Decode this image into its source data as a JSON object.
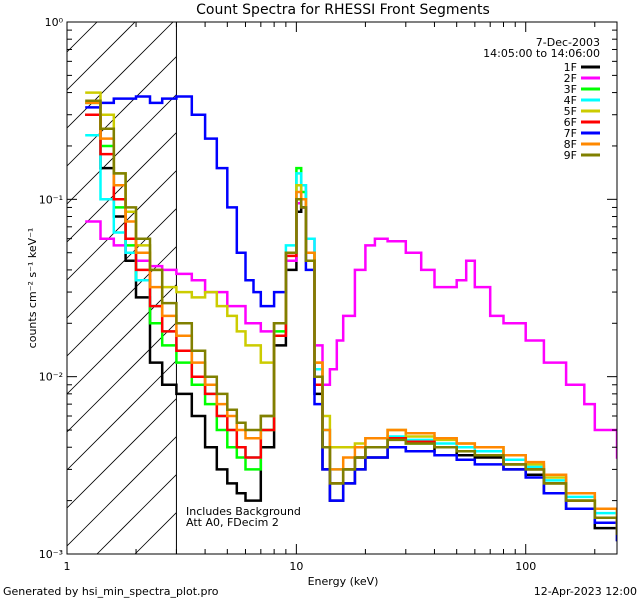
{
  "chart_data": {
    "type": "line",
    "title": "Count Spectra for RHESSI Front Segments",
    "xlabel": "Energy (keV)",
    "ylabel": "counts cm⁻² s⁻¹ keV⁻¹",
    "xscale": "log",
    "yscale": "log",
    "xlim": [
      1,
      250
    ],
    "ylim": [
      0.001,
      1
    ],
    "x_ticks": [
      {
        "value": 1,
        "label": "1"
      },
      {
        "value": 10,
        "label": "10"
      },
      {
        "value": 100,
        "label": "100"
      }
    ],
    "y_ticks": [
      {
        "value": 1,
        "label": "10⁰"
      },
      {
        "value": 0.1,
        "label": "10⁻¹"
      },
      {
        "value": 0.01,
        "label": "10⁻²"
      },
      {
        "value": 0.001,
        "label": "10⁻³"
      }
    ],
    "legend_position": "top-right",
    "header_lines": [
      "7-Dec-2003",
      "14:05:00 to 14:06:00"
    ],
    "annotation_lines": [
      "Includes Background",
      "Att A0, FDecim 2"
    ],
    "hatched_region_kev": [
      1,
      3
    ],
    "footer_left": "Generated by hsi_min_spectra_plot.pro",
    "footer_right": "12-Apr-2023 12:00",
    "series": [
      {
        "name": "1F",
        "color": "#000000",
        "x": [
          1.2,
          1.4,
          1.6,
          1.8,
          2.0,
          2.3,
          2.6,
          3.0,
          3.5,
          4,
          4.5,
          5,
          5.5,
          6,
          7,
          8,
          9,
          10,
          10.5,
          11,
          12,
          13,
          14,
          16,
          18,
          20,
          25,
          30,
          40,
          50,
          60,
          80,
          100,
          120,
          150,
          200,
          250
        ],
        "y": [
          0.3,
          0.15,
          0.08,
          0.045,
          0.028,
          0.012,
          0.009,
          0.008,
          0.006,
          0.004,
          0.003,
          0.0025,
          0.0022,
          0.002,
          0.004,
          0.015,
          0.04,
          0.085,
          0.09,
          0.05,
          0.008,
          0.003,
          0.002,
          0.0025,
          0.003,
          0.0035,
          0.004,
          0.0038,
          0.004,
          0.0036,
          0.0035,
          0.003,
          0.0028,
          0.0022,
          0.0018,
          0.0014,
          0.0012
        ]
      },
      {
        "name": "2F",
        "color": "#ff00ff",
        "x": [
          1.2,
          1.4,
          1.6,
          1.8,
          2.0,
          2.3,
          2.6,
          3.0,
          3.5,
          4,
          5,
          6,
          7,
          8,
          9,
          10,
          10.5,
          11,
          12,
          13,
          14,
          15,
          16,
          18,
          20,
          22,
          25,
          30,
          35,
          40,
          50,
          55,
          60,
          70,
          80,
          100,
          120,
          150,
          180,
          200,
          250
        ],
        "y": [
          0.075,
          0.06,
          0.055,
          0.05,
          0.045,
          0.042,
          0.04,
          0.038,
          0.035,
          0.03,
          0.025,
          0.02,
          0.018,
          0.02,
          0.045,
          0.095,
          0.12,
          0.06,
          0.015,
          0.009,
          0.011,
          0.016,
          0.022,
          0.04,
          0.055,
          0.06,
          0.058,
          0.05,
          0.04,
          0.032,
          0.035,
          0.045,
          0.032,
          0.022,
          0.02,
          0.016,
          0.012,
          0.009,
          0.007,
          0.005,
          0.0035
        ]
      },
      {
        "name": "3F",
        "color": "#00ff00",
        "x": [
          1.2,
          1.4,
          1.6,
          1.8,
          2.0,
          2.3,
          2.6,
          3.0,
          3.5,
          4,
          4.5,
          5,
          5.5,
          6,
          7,
          8,
          9,
          10,
          10.5,
          11,
          12,
          13,
          14,
          16,
          18,
          20,
          25,
          30,
          40,
          50,
          60,
          80,
          100,
          120,
          150,
          200,
          250
        ],
        "y": [
          0.35,
          0.2,
          0.09,
          0.055,
          0.035,
          0.02,
          0.015,
          0.012,
          0.009,
          0.007,
          0.005,
          0.004,
          0.0035,
          0.003,
          0.005,
          0.018,
          0.05,
          0.15,
          0.11,
          0.05,
          0.009,
          0.004,
          0.0025,
          0.003,
          0.0035,
          0.004,
          0.0045,
          0.0042,
          0.004,
          0.0038,
          0.0036,
          0.0032,
          0.003,
          0.0025,
          0.002,
          0.0016,
          0.0013
        ]
      },
      {
        "name": "4F",
        "color": "#00ffff",
        "x": [
          1.2,
          1.4,
          1.6,
          1.8,
          2.0,
          2.3,
          2.6,
          3.0,
          3.5,
          4,
          4.5,
          5,
          5.5,
          6,
          7,
          8,
          9,
          10,
          10.5,
          11,
          12,
          13,
          14,
          16,
          18,
          20,
          25,
          30,
          40,
          50,
          60,
          80,
          100,
          120,
          150,
          200,
          250
        ],
        "y": [
          0.23,
          0.1,
          0.065,
          0.05,
          0.035,
          0.025,
          0.018,
          0.014,
          0.01,
          0.008,
          0.006,
          0.005,
          0.004,
          0.0035,
          0.006,
          0.02,
          0.055,
          0.14,
          0.12,
          0.06,
          0.011,
          0.005,
          0.003,
          0.003,
          0.0035,
          0.004,
          0.0046,
          0.0044,
          0.0042,
          0.004,
          0.0038,
          0.0034,
          0.0031,
          0.0026,
          0.0021,
          0.0017,
          0.0014
        ]
      },
      {
        "name": "5F",
        "color": "#cccc00",
        "x": [
          1.2,
          1.4,
          1.6,
          1.8,
          2.0,
          2.3,
          2.6,
          3.0,
          3.5,
          4,
          4.5,
          5,
          5.5,
          6,
          7,
          8,
          9,
          10,
          10.5,
          11,
          12,
          13,
          14,
          16,
          18,
          20,
          25,
          30,
          40,
          50,
          60,
          80,
          100,
          120,
          150,
          200,
          250
        ],
        "y": [
          0.4,
          0.3,
          0.14,
          0.085,
          0.055,
          0.04,
          0.032,
          0.03,
          0.028,
          0.03,
          0.025,
          0.022,
          0.018,
          0.015,
          0.012,
          0.02,
          0.05,
          0.12,
          0.1,
          0.05,
          0.012,
          0.006,
          0.004,
          0.004,
          0.0042,
          0.0045,
          0.005,
          0.0046,
          0.0044,
          0.0042,
          0.004,
          0.0036,
          0.0032,
          0.0027,
          0.0022,
          0.0018,
          0.0015
        ]
      },
      {
        "name": "6F",
        "color": "#ff0000",
        "x": [
          1.2,
          1.4,
          1.6,
          1.8,
          2.0,
          2.3,
          2.6,
          3.0,
          3.5,
          4,
          4.5,
          5,
          5.5,
          6,
          7,
          8,
          9,
          10,
          10.5,
          11,
          12,
          13,
          14,
          16,
          18,
          20,
          25,
          30,
          40,
          50,
          60,
          80,
          100,
          120,
          150,
          200,
          250
        ],
        "y": [
          0.3,
          0.18,
          0.1,
          0.06,
          0.04,
          0.025,
          0.018,
          0.014,
          0.01,
          0.008,
          0.006,
          0.005,
          0.004,
          0.0035,
          0.005,
          0.017,
          0.048,
          0.1,
          0.09,
          0.045,
          0.009,
          0.004,
          0.0025,
          0.003,
          0.0035,
          0.004,
          0.0045,
          0.0043,
          0.004,
          0.0038,
          0.0036,
          0.0032,
          0.003,
          0.0025,
          0.002,
          0.0016,
          0.0013
        ]
      },
      {
        "name": "7F",
        "color": "#0000ff",
        "x": [
          1.2,
          1.4,
          1.6,
          1.8,
          2.0,
          2.3,
          2.6,
          3.0,
          3.5,
          4,
          4.5,
          5,
          5.5,
          6,
          6.5,
          7,
          8,
          9,
          10,
          10.5,
          11,
          12,
          13,
          14,
          16,
          18,
          20,
          25,
          30,
          40,
          50,
          60,
          80,
          100,
          120,
          150,
          200,
          250
        ],
        "y": [
          0.33,
          0.35,
          0.37,
          0.37,
          0.38,
          0.35,
          0.37,
          0.38,
          0.3,
          0.22,
          0.15,
          0.09,
          0.05,
          0.035,
          0.03,
          0.025,
          0.03,
          0.05,
          0.1,
          0.09,
          0.04,
          0.007,
          0.003,
          0.002,
          0.0025,
          0.003,
          0.0035,
          0.004,
          0.0038,
          0.0036,
          0.0034,
          0.0032,
          0.003,
          0.0027,
          0.0022,
          0.0018,
          0.0015,
          0.0012
        ]
      },
      {
        "name": "8F",
        "color": "#ff8800",
        "x": [
          1.2,
          1.4,
          1.6,
          1.8,
          2.0,
          2.3,
          2.6,
          3.0,
          3.5,
          4,
          4.5,
          5,
          5.5,
          6,
          7,
          8,
          9,
          10,
          10.5,
          11,
          12,
          13,
          14,
          16,
          18,
          20,
          25,
          30,
          40,
          50,
          60,
          80,
          100,
          120,
          150,
          200,
          250
        ],
        "y": [
          0.35,
          0.22,
          0.12,
          0.075,
          0.05,
          0.032,
          0.022,
          0.017,
          0.012,
          0.009,
          0.007,
          0.006,
          0.005,
          0.0045,
          0.006,
          0.02,
          0.05,
          0.11,
          0.1,
          0.05,
          0.012,
          0.005,
          0.003,
          0.0035,
          0.004,
          0.0045,
          0.005,
          0.0048,
          0.0045,
          0.0042,
          0.004,
          0.0036,
          0.0033,
          0.0028,
          0.0022,
          0.0018,
          0.0015
        ]
      },
      {
        "name": "9F",
        "color": "#808000",
        "x": [
          1.2,
          1.4,
          1.6,
          1.8,
          2.0,
          2.3,
          2.6,
          3.0,
          3.5,
          4,
          4.5,
          5,
          5.5,
          6,
          7,
          8,
          9,
          10,
          10.5,
          11,
          12,
          13,
          14,
          16,
          18,
          20,
          25,
          30,
          40,
          50,
          60,
          80,
          100,
          120,
          150,
          200,
          250
        ],
        "y": [
          0.36,
          0.25,
          0.14,
          0.09,
          0.06,
          0.04,
          0.026,
          0.02,
          0.014,
          0.01,
          0.008,
          0.0065,
          0.0055,
          0.005,
          0.006,
          0.02,
          0.05,
          0.1,
          0.09,
          0.045,
          0.01,
          0.004,
          0.0025,
          0.003,
          0.0035,
          0.004,
          0.0044,
          0.0042,
          0.004,
          0.0038,
          0.0036,
          0.0032,
          0.003,
          0.0025,
          0.002,
          0.0016,
          0.0013
        ]
      }
    ]
  }
}
